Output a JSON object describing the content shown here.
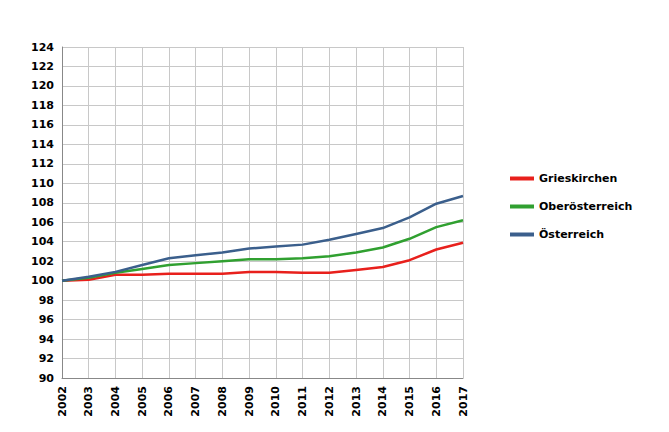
{
  "chart_data": {
    "type": "line",
    "categories": [
      "2002",
      "2003",
      "2004",
      "2005",
      "2006",
      "2007",
      "2008",
      "2009",
      "2010",
      "2011",
      "2012",
      "2013",
      "2014",
      "2015",
      "2016",
      "2017"
    ],
    "series": [
      {
        "name": "Grieskirchen",
        "color": "#e8201c",
        "values": [
          100,
          100.1,
          100.6,
          100.6,
          100.7,
          100.7,
          100.7,
          100.9,
          100.9,
          100.8,
          100.8,
          101.1,
          101.4,
          102.1,
          103.2,
          103.9
        ]
      },
      {
        "name": "Oberösterreich",
        "color": "#30a030",
        "values": [
          100,
          100.3,
          100.8,
          101.2,
          101.6,
          101.8,
          102.0,
          102.2,
          102.2,
          102.3,
          102.5,
          102.9,
          103.4,
          104.3,
          105.5,
          106.2
        ]
      },
      {
        "name": "Österreich",
        "color": "#3b5f8c",
        "values": [
          100,
          100.4,
          100.9,
          101.6,
          102.3,
          102.6,
          102.9,
          103.3,
          103.5,
          103.7,
          104.2,
          104.8,
          105.4,
          106.5,
          107.9,
          108.7
        ]
      }
    ],
    "ylim": [
      90,
      124
    ],
    "yticks": [
      90,
      92,
      94,
      96,
      98,
      100,
      102,
      104,
      106,
      108,
      110,
      112,
      114,
      116,
      118,
      120,
      122,
      124
    ],
    "grid": true,
    "legend": "right"
  }
}
